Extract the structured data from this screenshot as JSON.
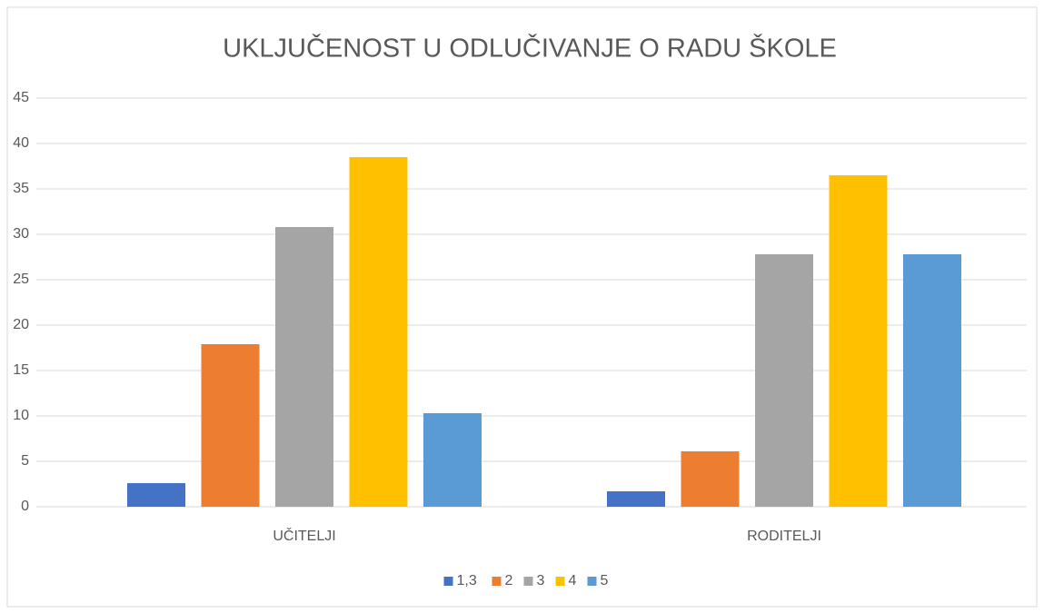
{
  "chart_data": {
    "type": "bar",
    "title": "UKLJUČENOST U ODLUČIVANJE O RADU ŠKOLE",
    "categories": [
      "UČITELJI",
      "RODITELJI"
    ],
    "series": [
      {
        "name": "1,3",
        "color": "#4472c4",
        "values": [
          2.6,
          1.7
        ]
      },
      {
        "name": "2",
        "color": "#ed7d31",
        "values": [
          17.9,
          6.1
        ]
      },
      {
        "name": "3",
        "color": "#a5a5a5",
        "values": [
          30.8,
          27.8
        ]
      },
      {
        "name": "4",
        "color": "#ffc000",
        "values": [
          38.5,
          36.5
        ]
      },
      {
        "name": "5",
        "color": "#5b9bd5",
        "values": [
          10.3,
          27.8
        ]
      }
    ],
    "ylim": [
      0,
      45
    ],
    "yticks": [
      0,
      5,
      10,
      15,
      20,
      25,
      30,
      35,
      40,
      45
    ],
    "grid": true,
    "legend": "bottom"
  }
}
